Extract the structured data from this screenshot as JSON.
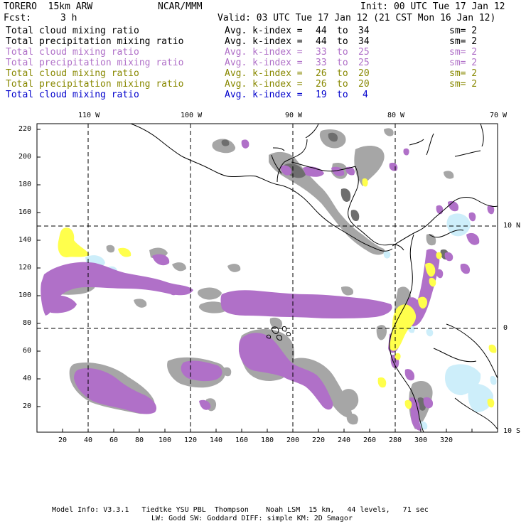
{
  "header": {
    "model_name": "TORERO  15km ARW",
    "institution": "NCAR/MMM",
    "init": "Init: 00 UTC Tue 17 Jan 12",
    "fcst_label": "Fcst:",
    "fcst_value": "3 h",
    "valid": "Valid: 03 UTC Tue 17 Jan 12 (21 CST Mon 16 Jan 12)"
  },
  "legend": [
    {
      "field": "Total cloud mixing ratio",
      "index_label": "Avg. k-index =",
      "k_from": "44",
      "to": "to",
      "k_to": "34",
      "sm": "sm= 2",
      "color": "#000000"
    },
    {
      "field": "Total precipitation mixing ratio",
      "index_label": "Avg. k-index =",
      "k_from": "44",
      "to": "to",
      "k_to": "34",
      "sm": "sm= 2",
      "color": "#000000"
    },
    {
      "field": "Total cloud mixing ratio",
      "index_label": "Avg. k-index =",
      "k_from": "33",
      "to": "to",
      "k_to": "25",
      "sm": "sm= 2",
      "color": "#b070c8"
    },
    {
      "field": "Total precipitation mixing ratio",
      "index_label": "Avg. k-index =",
      "k_from": "33",
      "to": "to",
      "k_to": "25",
      "sm": "sm= 2",
      "color": "#b070c8"
    },
    {
      "field": "Total cloud mixing ratio",
      "index_label": "Avg. k-index =",
      "k_from": "26",
      "to": "to",
      "k_to": "20",
      "sm": "sm= 2",
      "color": "#888800"
    },
    {
      "field": "Total precipitation mixing ratio",
      "index_label": "Avg. k-index =",
      "k_from": "26",
      "to": "to",
      "k_to": "20",
      "sm": "sm= 2",
      "color": "#888800"
    },
    {
      "field": "Total cloud mixing ratio",
      "index_label": "Avg. k-index =",
      "k_from": "19",
      "to": "to",
      "k_to": "4",
      "sm": "",
      "color": "#0000cc"
    }
  ],
  "map": {
    "lon_labels": [
      "110 W",
      "100 W",
      "90 W",
      "80 W",
      "70 W"
    ],
    "lat_labels": [
      "10 N",
      "0",
      "10 S"
    ],
    "y_ticks": [
      "220",
      "200",
      "180",
      "160",
      "140",
      "120",
      "100",
      "80",
      "60",
      "40",
      "20"
    ],
    "x_ticks": [
      "20",
      "40",
      "60",
      "80",
      "100",
      "120",
      "140",
      "160",
      "180",
      "200",
      "220",
      "240",
      "260",
      "280",
      "300",
      "320"
    ],
    "colors": {
      "cloud_gray": "#a6a6a6",
      "dark_gray": "#6e6e6e",
      "purple": "#b070c8",
      "yellow": "#ffff4c",
      "light_blue": "#cdeefa"
    }
  },
  "footer": {
    "line1": "Model Info: V3.3.1   Tiedtke YSU PBL  Thompson    Noah LSM  15 km,   44 levels,   71 sec",
    "line2": "LW: Godd SW: Goddard DIFF: simple KM: 2D Smagor"
  }
}
